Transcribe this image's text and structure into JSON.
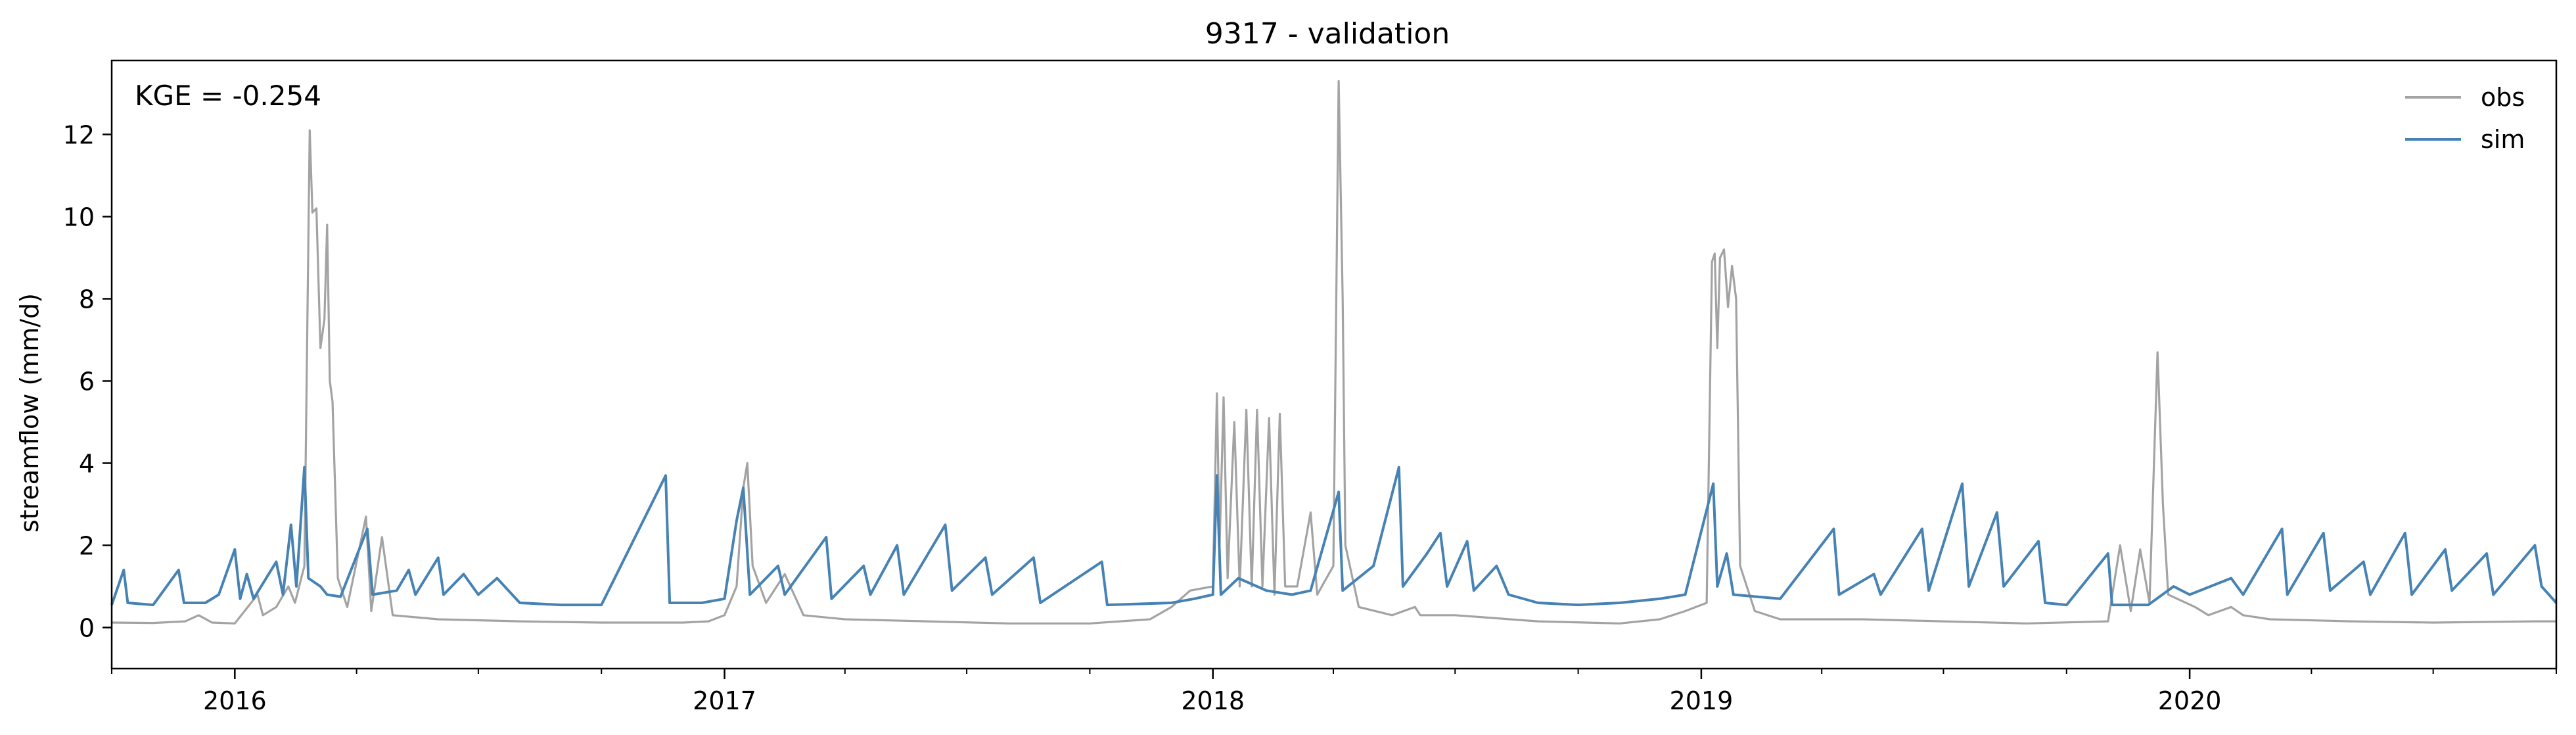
{
  "chart_data": {
    "type": "line",
    "title": "9317 - validation",
    "xlabel": "",
    "ylabel": "streamflow (mm/d)",
    "annotation": "KGE = -0.254",
    "x_range": [
      "2015-10-01",
      "2020-10-01"
    ],
    "ylim": [
      -1,
      13.8
    ],
    "y_ticks": [
      0,
      2,
      4,
      6,
      8,
      10,
      12
    ],
    "x_ticks": [
      {
        "date": "2016-01-01",
        "label": "2016"
      },
      {
        "date": "2017-01-01",
        "label": "2017"
      },
      {
        "date": "2018-01-01",
        "label": "2018"
      },
      {
        "date": "2019-01-01",
        "label": "2019"
      },
      {
        "date": "2020-01-01",
        "label": "2020"
      }
    ],
    "grid": false,
    "legend_position": "top-right",
    "series": [
      {
        "name": "obs",
        "color": "#a3a3a3",
        "points": [
          [
            "2015-10-01",
            0.12
          ],
          [
            "2015-11-01",
            0.11
          ],
          [
            "2015-11-25",
            0.15
          ],
          [
            "2015-12-05",
            0.3
          ],
          [
            "2015-12-15",
            0.12
          ],
          [
            "2016-01-01",
            0.1
          ],
          [
            "2016-01-18",
            0.8
          ],
          [
            "2016-01-22",
            0.3
          ],
          [
            "2016-02-01",
            0.5
          ],
          [
            "2016-02-10",
            1.0
          ],
          [
            "2016-02-15",
            0.6
          ],
          [
            "2016-02-22",
            1.5
          ],
          [
            "2016-02-26",
            12.1
          ],
          [
            "2016-02-28",
            10.1
          ],
          [
            "2016-03-02",
            10.2
          ],
          [
            "2016-03-05",
            6.8
          ],
          [
            "2016-03-08",
            7.5
          ],
          [
            "2016-03-10",
            9.8
          ],
          [
            "2016-03-12",
            6.0
          ],
          [
            "2016-03-14",
            5.5
          ],
          [
            "2016-03-18",
            1.2
          ],
          [
            "2016-03-25",
            0.5
          ],
          [
            "2016-04-08",
            2.7
          ],
          [
            "2016-04-12",
            0.4
          ],
          [
            "2016-04-20",
            2.2
          ],
          [
            "2016-04-28",
            0.3
          ],
          [
            "2016-06-01",
            0.2
          ],
          [
            "2016-08-01",
            0.15
          ],
          [
            "2016-10-01",
            0.12
          ],
          [
            "2016-12-01",
            0.12
          ],
          [
            "2016-12-20",
            0.15
          ],
          [
            "2017-01-01",
            0.3
          ],
          [
            "2017-01-10",
            1.0
          ],
          [
            "2017-01-15",
            3.4
          ],
          [
            "2017-01-18",
            4.0
          ],
          [
            "2017-01-22",
            1.5
          ],
          [
            "2017-02-01",
            0.6
          ],
          [
            "2017-02-15",
            1.3
          ],
          [
            "2017-03-01",
            0.3
          ],
          [
            "2017-04-01",
            0.2
          ],
          [
            "2017-06-01",
            0.15
          ],
          [
            "2017-08-01",
            0.1
          ],
          [
            "2017-10-01",
            0.1
          ],
          [
            "2017-11-15",
            0.2
          ],
          [
            "2017-12-01",
            0.5
          ],
          [
            "2017-12-15",
            0.9
          ],
          [
            "2018-01-01",
            1.0
          ],
          [
            "2018-01-04",
            5.7
          ],
          [
            "2018-01-06",
            2.0
          ],
          [
            "2018-01-09",
            5.6
          ],
          [
            "2018-01-12",
            1.2
          ],
          [
            "2018-01-17",
            5.0
          ],
          [
            "2018-01-21",
            1.0
          ],
          [
            "2018-01-26",
            5.3
          ],
          [
            "2018-01-30",
            1.0
          ],
          [
            "2018-02-03",
            5.3
          ],
          [
            "2018-02-07",
            1.0
          ],
          [
            "2018-02-12",
            5.1
          ],
          [
            "2018-02-16",
            0.8
          ],
          [
            "2018-02-20",
            5.2
          ],
          [
            "2018-02-24",
            1.0
          ],
          [
            "2018-03-05",
            1.0
          ],
          [
            "2018-03-15",
            2.8
          ],
          [
            "2018-03-20",
            0.8
          ],
          [
            "2018-04-01",
            1.5
          ],
          [
            "2018-04-05",
            13.3
          ],
          [
            "2018-04-08",
            8.0
          ],
          [
            "2018-04-10",
            2.0
          ],
          [
            "2018-04-20",
            0.5
          ],
          [
            "2018-05-15",
            0.3
          ],
          [
            "2018-06-01",
            0.5
          ],
          [
            "2018-06-05",
            0.3
          ],
          [
            "2018-07-01",
            0.3
          ],
          [
            "2018-09-01",
            0.15
          ],
          [
            "2018-11-01",
            0.1
          ],
          [
            "2018-12-01",
            0.2
          ],
          [
            "2018-12-20",
            0.4
          ],
          [
            "2019-01-05",
            0.6
          ],
          [
            "2019-01-09",
            8.9
          ],
          [
            "2019-01-11",
            9.1
          ],
          [
            "2019-01-13",
            6.8
          ],
          [
            "2019-01-15",
            9.0
          ],
          [
            "2019-01-18",
            9.2
          ],
          [
            "2019-01-21",
            7.8
          ],
          [
            "2019-01-24",
            8.8
          ],
          [
            "2019-01-27",
            8.0
          ],
          [
            "2019-01-30",
            1.5
          ],
          [
            "2019-02-10",
            0.4
          ],
          [
            "2019-03-01",
            0.2
          ],
          [
            "2019-05-01",
            0.2
          ],
          [
            "2019-07-01",
            0.15
          ],
          [
            "2019-09-01",
            0.1
          ],
          [
            "2019-11-01",
            0.15
          ],
          [
            "2019-11-10",
            2.0
          ],
          [
            "2019-11-18",
            0.4
          ],
          [
            "2019-11-25",
            1.9
          ],
          [
            "2019-12-02",
            0.6
          ],
          [
            "2019-12-08",
            6.7
          ],
          [
            "2019-12-12",
            3.0
          ],
          [
            "2019-12-16",
            0.8
          ],
          [
            "2020-01-05",
            0.5
          ],
          [
            "2020-01-15",
            0.3
          ],
          [
            "2020-02-01",
            0.5
          ],
          [
            "2020-02-10",
            0.3
          ],
          [
            "2020-03-01",
            0.2
          ],
          [
            "2020-05-01",
            0.15
          ],
          [
            "2020-07-01",
            0.12
          ],
          [
            "2020-09-15",
            0.15
          ],
          [
            "2020-10-01",
            0.15
          ]
        ]
      },
      {
        "name": "sim",
        "color": "#4682b4",
        "points": [
          [
            "2015-10-01",
            0.55
          ],
          [
            "2015-10-10",
            1.4
          ],
          [
            "2015-10-13",
            0.6
          ],
          [
            "2015-11-01",
            0.55
          ],
          [
            "2015-11-20",
            1.4
          ],
          [
            "2015-11-24",
            0.6
          ],
          [
            "2015-12-10",
            0.6
          ],
          [
            "2015-12-20",
            0.8
          ],
          [
            "2016-01-01",
            1.9
          ],
          [
            "2016-01-05",
            0.7
          ],
          [
            "2016-01-10",
            1.3
          ],
          [
            "2016-01-15",
            0.7
          ],
          [
            "2016-02-01",
            1.6
          ],
          [
            "2016-02-06",
            0.8
          ],
          [
            "2016-02-12",
            2.5
          ],
          [
            "2016-02-16",
            1.0
          ],
          [
            "2016-02-22",
            3.9
          ],
          [
            "2016-02-25",
            1.2
          ],
          [
            "2016-03-05",
            1.0
          ],
          [
            "2016-03-10",
            0.8
          ],
          [
            "2016-03-20",
            0.75
          ],
          [
            "2016-04-09",
            2.4
          ],
          [
            "2016-04-13",
            0.8
          ],
          [
            "2016-05-01",
            0.9
          ],
          [
            "2016-05-10",
            1.4
          ],
          [
            "2016-05-15",
            0.8
          ],
          [
            "2016-06-01",
            1.7
          ],
          [
            "2016-06-05",
            0.8
          ],
          [
            "2016-06-20",
            1.3
          ],
          [
            "2016-07-01",
            0.8
          ],
          [
            "2016-07-15",
            1.2
          ],
          [
            "2016-08-01",
            0.6
          ],
          [
            "2016-09-01",
            0.55
          ],
          [
            "2016-10-01",
            0.55
          ],
          [
            "2016-11-18",
            3.7
          ],
          [
            "2016-11-21",
            0.6
          ],
          [
            "2016-12-15",
            0.6
          ],
          [
            "2017-01-01",
            0.7
          ],
          [
            "2017-01-10",
            2.6
          ],
          [
            "2017-01-15",
            3.4
          ],
          [
            "2017-01-20",
            0.8
          ],
          [
            "2017-02-10",
            1.5
          ],
          [
            "2017-02-15",
            0.8
          ],
          [
            "2017-03-18",
            2.2
          ],
          [
            "2017-03-22",
            0.7
          ],
          [
            "2017-04-15",
            1.5
          ],
          [
            "2017-04-20",
            0.8
          ],
          [
            "2017-05-10",
            2.0
          ],
          [
            "2017-05-15",
            0.8
          ],
          [
            "2017-06-15",
            2.5
          ],
          [
            "2017-06-20",
            0.9
          ],
          [
            "2017-07-15",
            1.7
          ],
          [
            "2017-07-20",
            0.8
          ],
          [
            "2017-08-20",
            1.7
          ],
          [
            "2017-08-25",
            0.6
          ],
          [
            "2017-10-10",
            1.6
          ],
          [
            "2017-10-14",
            0.55
          ],
          [
            "2017-12-01",
            0.6
          ],
          [
            "2017-12-18",
            0.7
          ],
          [
            "2018-01-01",
            0.8
          ],
          [
            "2018-01-04",
            3.7
          ],
          [
            "2018-01-07",
            0.8
          ],
          [
            "2018-01-20",
            1.2
          ],
          [
            "2018-02-10",
            0.9
          ],
          [
            "2018-03-01",
            0.8
          ],
          [
            "2018-03-15",
            0.9
          ],
          [
            "2018-04-05",
            3.3
          ],
          [
            "2018-04-08",
            0.9
          ],
          [
            "2018-05-01",
            1.5
          ],
          [
            "2018-05-20",
            3.9
          ],
          [
            "2018-05-23",
            1.0
          ],
          [
            "2018-06-10",
            1.8
          ],
          [
            "2018-06-20",
            2.3
          ],
          [
            "2018-06-25",
            1.0
          ],
          [
            "2018-07-10",
            2.1
          ],
          [
            "2018-07-15",
            0.9
          ],
          [
            "2018-08-01",
            1.5
          ],
          [
            "2018-08-10",
            0.8
          ],
          [
            "2018-09-01",
            0.6
          ],
          [
            "2018-10-01",
            0.55
          ],
          [
            "2018-11-01",
            0.6
          ],
          [
            "2018-12-01",
            0.7
          ],
          [
            "2018-12-20",
            0.8
          ],
          [
            "2019-01-10",
            3.5
          ],
          [
            "2019-01-13",
            1.0
          ],
          [
            "2019-01-20",
            1.8
          ],
          [
            "2019-01-25",
            0.8
          ],
          [
            "2019-03-01",
            0.7
          ],
          [
            "2019-04-10",
            2.4
          ],
          [
            "2019-04-14",
            0.8
          ],
          [
            "2019-05-10",
            1.3
          ],
          [
            "2019-05-15",
            0.8
          ],
          [
            "2019-06-15",
            2.4
          ],
          [
            "2019-06-20",
            0.9
          ],
          [
            "2019-07-15",
            3.5
          ],
          [
            "2019-07-20",
            1.0
          ],
          [
            "2019-08-10",
            2.8
          ],
          [
            "2019-08-15",
            1.0
          ],
          [
            "2019-09-10",
            2.1
          ],
          [
            "2019-09-15",
            0.6
          ],
          [
            "2019-10-01",
            0.55
          ],
          [
            "2019-11-01",
            1.8
          ],
          [
            "2019-11-04",
            0.55
          ],
          [
            "2019-12-01",
            0.55
          ],
          [
            "2019-12-20",
            1.0
          ],
          [
            "2020-01-01",
            0.8
          ],
          [
            "2020-02-01",
            1.2
          ],
          [
            "2020-02-10",
            0.8
          ],
          [
            "2020-03-10",
            2.4
          ],
          [
            "2020-03-14",
            0.8
          ],
          [
            "2020-04-10",
            2.3
          ],
          [
            "2020-04-15",
            0.9
          ],
          [
            "2020-05-10",
            1.6
          ],
          [
            "2020-05-15",
            0.8
          ],
          [
            "2020-06-10",
            2.3
          ],
          [
            "2020-06-15",
            0.8
          ],
          [
            "2020-07-10",
            1.9
          ],
          [
            "2020-07-15",
            0.9
          ],
          [
            "2020-08-10",
            1.8
          ],
          [
            "2020-08-15",
            0.8
          ],
          [
            "2020-09-15",
            2.0
          ],
          [
            "2020-09-20",
            1.0
          ],
          [
            "2020-10-01",
            0.6
          ]
        ]
      }
    ]
  }
}
